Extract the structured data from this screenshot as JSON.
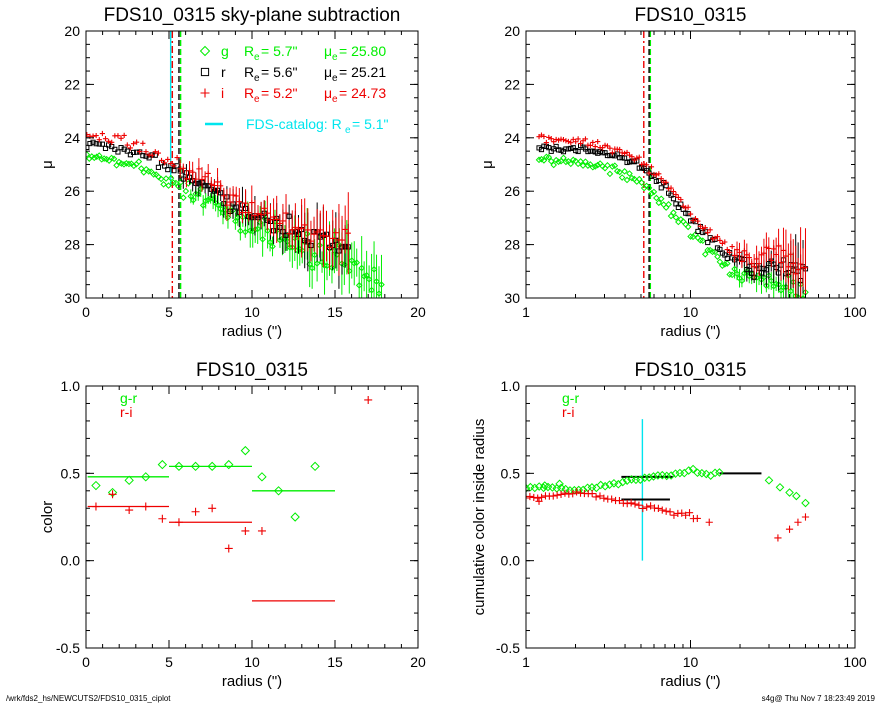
{
  "footer": {
    "left": "/wrk/fds2_hs/NEWCUTS2/FDS10_0315_ciplot",
    "right": "s4g@  Thu Nov  7 18:23:49 2019"
  },
  "colors": {
    "g": "#00ee00",
    "r": "#000000",
    "i": "#ee0000",
    "catalog": "#00e5ee"
  },
  "chart_data": [
    {
      "type": "scatter",
      "title": "FDS10_0315 sky-plane subtraction",
      "xlabel": "radius (\")",
      "ylabel": "μ",
      "xlim": [
        0,
        20
      ],
      "ylim": [
        30,
        20
      ],
      "x_scale": "linear",
      "x_ticks": [
        0,
        5,
        10,
        15,
        20
      ],
      "y_ticks": [
        20,
        22,
        24,
        26,
        28,
        30
      ],
      "legend": [
        {
          "marker": "diamond",
          "band": "g",
          "text": "R",
          "sub": "e",
          "value": "=   5.7\"",
          "mu": "μ",
          "mu_sub": "e",
          "mu_value": "= 25.80",
          "color": "#00ee00"
        },
        {
          "marker": "square",
          "band": "r",
          "text": "R",
          "sub": "e",
          "value": "=   5.6\"",
          "mu": "μ",
          "mu_sub": "e",
          "mu_value": "= 25.21",
          "color": "#000000"
        },
        {
          "marker": "plus",
          "band": "i",
          "text": "R",
          "sub": "e",
          "value": "=   5.2\"",
          "mu": "μ",
          "mu_sub": "e",
          "mu_value": "= 24.73",
          "color": "#ee0000"
        }
      ],
      "catalog_legend": {
        "text": "FDS-catalog: R",
        "sub": "e",
        "value": "=   5.1\"",
        "color": "#00e5ee"
      },
      "vlines": [
        {
          "x": 5.7,
          "color": "#00ee00",
          "style": "dashed"
        },
        {
          "x": 5.6,
          "color": "#000000",
          "style": "dashed"
        },
        {
          "x": 5.2,
          "color": "#ee0000",
          "style": "dashdot"
        },
        {
          "x": 5.1,
          "color": "#00e5ee",
          "style": "solid",
          "ymin": 25.8
        }
      ],
      "series": [
        {
          "name": "g",
          "marker": "diamond",
          "color": "#00ee00",
          "profile": [
            [
              0,
              24.6
            ],
            [
              2,
              24.9
            ],
            [
              4,
              25.3
            ],
            [
              6,
              25.9
            ],
            [
              8,
              26.6
            ],
            [
              10,
              27.3
            ],
            [
              12,
              27.8
            ],
            [
              14,
              28.4
            ],
            [
              16,
              28.9
            ],
            [
              17.8,
              29.4
            ]
          ],
          "n": 120,
          "scatter": 0.15,
          "xmax": 17.8
        },
        {
          "name": "r",
          "marker": "square",
          "color": "#000000",
          "profile": [
            [
              0,
              24.2
            ],
            [
              2,
              24.4
            ],
            [
              4,
              24.8
            ],
            [
              6,
              25.4
            ],
            [
              8,
              26.1
            ],
            [
              10,
              26.8
            ],
            [
              12,
              27.3
            ],
            [
              14,
              27.8
            ],
            [
              16,
              28.4
            ]
          ],
          "n": 85,
          "scatter": 0.1,
          "xmax": 15.8
        },
        {
          "name": "i",
          "marker": "plus",
          "color": "#ee0000",
          "profile": [
            [
              0,
              23.9
            ],
            [
              2,
              24.1
            ],
            [
              4,
              24.6
            ],
            [
              6,
              25.2
            ],
            [
              8,
              25.9
            ],
            [
              10,
              26.6
            ],
            [
              12,
              27.2
            ],
            [
              14,
              27.6
            ],
            [
              16,
              28.0
            ]
          ],
          "n": 85,
          "scatter": 0.12,
          "xmax": 15.8
        }
      ]
    },
    {
      "type": "scatter",
      "title": "FDS10_0315",
      "xlabel": "radius (\")",
      "ylabel": "μ",
      "xlim": [
        1,
        100
      ],
      "ylim": [
        30,
        20
      ],
      "x_scale": "log",
      "x_ticks": [
        1,
        10,
        100
      ],
      "y_ticks": [
        20,
        22,
        24,
        26,
        28,
        30
      ],
      "vlines": [
        {
          "x": 5.7,
          "color": "#00ee00",
          "style": "dashed"
        },
        {
          "x": 5.6,
          "color": "#000000",
          "style": "dashed"
        },
        {
          "x": 5.2,
          "color": "#ee0000",
          "style": "dashdot"
        }
      ],
      "series": [
        {
          "name": "g",
          "marker": "diamond",
          "color": "#00ee00",
          "profile": [
            [
              1.2,
              24.8
            ],
            [
              2,
              24.9
            ],
            [
              3,
              25.1
            ],
            [
              4,
              25.4
            ],
            [
              5,
              25.7
            ],
            [
              6,
              26.1
            ],
            [
              8,
              26.9
            ],
            [
              10,
              27.6
            ],
            [
              13,
              28.3
            ],
            [
              17,
              28.9
            ],
            [
              25,
              29.3
            ],
            [
              35,
              29.4
            ],
            [
              50,
              29.6
            ]
          ],
          "n": 110,
          "scatter": 0.12,
          "xmin": 1.2,
          "xmax": 50
        },
        {
          "name": "r",
          "marker": "square",
          "color": "#000000",
          "profile": [
            [
              1.2,
              24.4
            ],
            [
              2,
              24.4
            ],
            [
              3,
              24.6
            ],
            [
              4,
              24.8
            ],
            [
              5,
              25.1
            ],
            [
              6,
              25.5
            ],
            [
              8,
              26.3
            ],
            [
              10,
              27.0
            ],
            [
              13,
              27.8
            ],
            [
              17,
              28.5
            ],
            [
              25,
              28.9
            ],
            [
              35,
              28.8
            ],
            [
              50,
              29.3
            ]
          ],
          "n": 110,
          "scatter": 0.1,
          "xmin": 1.2,
          "xmax": 50
        },
        {
          "name": "i",
          "marker": "plus",
          "color": "#ee0000",
          "profile": [
            [
              1.2,
              24.0
            ],
            [
              2,
              24.1
            ],
            [
              3,
              24.3
            ],
            [
              4,
              24.6
            ],
            [
              5,
              24.9
            ],
            [
              6,
              25.3
            ],
            [
              8,
              26.1
            ],
            [
              10,
              26.8
            ],
            [
              13,
              27.6
            ],
            [
              17,
              28.3
            ],
            [
              25,
              28.5
            ],
            [
              35,
              28.3
            ],
            [
              50,
              29.0
            ]
          ],
          "n": 110,
          "scatter": 0.12,
          "xmin": 1.2,
          "xmax": 50
        }
      ]
    },
    {
      "type": "scatter",
      "title": "FDS10_0315",
      "xlabel": "radius (\")",
      "ylabel": "color",
      "xlim": [
        0,
        20
      ],
      "ylim": [
        -0.5,
        1.0
      ],
      "x_scale": "linear",
      "x_ticks": [
        0,
        5,
        10,
        15,
        20
      ],
      "y_ticks": [
        -0.5,
        0.0,
        0.5,
        1.0
      ],
      "y_tick_labels": [
        "-0.5",
        "0.0",
        "0.5",
        "1.0"
      ],
      "legend": [
        {
          "text": "g-r",
          "color": "#00ee00"
        },
        {
          "text": "r-i",
          "color": "#ee0000"
        }
      ],
      "series": [
        {
          "name": "g-r",
          "marker": "diamond",
          "color": "#00ee00",
          "points": [
            [
              0.6,
              0.43
            ],
            [
              1.6,
              0.39
            ],
            [
              2.6,
              0.46
            ],
            [
              3.6,
              0.48
            ],
            [
              4.6,
              0.55
            ],
            [
              5.6,
              0.54
            ],
            [
              6.6,
              0.54
            ],
            [
              7.6,
              0.54
            ],
            [
              8.6,
              0.55
            ],
            [
              9.6,
              0.63
            ],
            [
              10.6,
              0.48
            ],
            [
              11.6,
              0.4
            ],
            [
              12.6,
              0.25
            ],
            [
              13.8,
              0.54
            ]
          ]
        },
        {
          "name": "r-i",
          "marker": "plus",
          "color": "#ee0000",
          "points": [
            [
              0.6,
              0.31
            ],
            [
              1.6,
              0.38
            ],
            [
              2.6,
              0.29
            ],
            [
              3.6,
              0.31
            ],
            [
              4.6,
              0.24
            ],
            [
              5.6,
              0.22
            ],
            [
              6.6,
              0.28
            ],
            [
              7.6,
              0.3
            ],
            [
              8.6,
              0.07
            ],
            [
              9.6,
              0.17
            ],
            [
              10.6,
              0.17
            ],
            [
              17,
              0.92
            ]
          ]
        }
      ],
      "segments": [
        {
          "color": "#00ee00",
          "x1": 0.1,
          "x2": 5,
          "y": 0.48
        },
        {
          "color": "#00ee00",
          "x1": 5,
          "x2": 10,
          "y": 0.54
        },
        {
          "color": "#00ee00",
          "x1": 10,
          "x2": 15,
          "y": 0.4
        },
        {
          "color": "#ee0000",
          "x1": 0.1,
          "x2": 5,
          "y": 0.31
        },
        {
          "color": "#ee0000",
          "x1": 5,
          "x2": 10,
          "y": 0.22
        },
        {
          "color": "#ee0000",
          "x1": 10,
          "x2": 15,
          "y": -0.23
        }
      ]
    },
    {
      "type": "scatter",
      "title": "FDS10_0315",
      "xlabel": "radius (\")",
      "ylabel": "cumulative color inside radius",
      "xlim": [
        1,
        100
      ],
      "ylim": [
        -0.5,
        1.0
      ],
      "x_scale": "log",
      "x_ticks": [
        1,
        10,
        100
      ],
      "y_ticks": [
        -0.5,
        0.0,
        0.5,
        1.0
      ],
      "y_tick_labels": [
        "-0.5",
        "0.0",
        "0.5",
        "1.0"
      ],
      "legend": [
        {
          "text": "g-r",
          "color": "#00ee00"
        },
        {
          "text": "r-i",
          "color": "#ee0000"
        }
      ],
      "vlines": [
        {
          "x": 5.1,
          "color": "#00e5ee",
          "style": "solid",
          "ymin": 0.0,
          "ymax": 0.81
        }
      ],
      "series": [
        {
          "name": "g-r",
          "marker": "diamond",
          "color": "#00ee00",
          "profile": [
            [
              1.0,
              0.42
            ],
            [
              1.5,
              0.42
            ],
            [
              2,
              0.4
            ],
            [
              3,
              0.43
            ],
            [
              4,
              0.45
            ],
            [
              5,
              0.47
            ],
            [
              6,
              0.48
            ],
            [
              8,
              0.5
            ],
            [
              10,
              0.51
            ],
            [
              12,
              0.51
            ],
            [
              15,
              0.5
            ]
          ],
          "n": 45,
          "scatter": 0.005,
          "xmin": 1.0,
          "xmax": 15,
          "extra": [
            [
              1.3,
              0.43
            ],
            [
              1.6,
              0.44
            ],
            [
              30,
              0.46
            ],
            [
              35,
              0.42
            ],
            [
              40,
              0.39
            ],
            [
              44,
              0.37
            ],
            [
              50,
              0.33
            ]
          ]
        },
        {
          "name": "r-i",
          "marker": "plus",
          "color": "#ee0000",
          "profile": [
            [
              1.0,
              0.36
            ],
            [
              1.5,
              0.37
            ],
            [
              2,
              0.39
            ],
            [
              2.5,
              0.38
            ],
            [
              3,
              0.36
            ],
            [
              4,
              0.33
            ],
            [
              5,
              0.31
            ],
            [
              6,
              0.3
            ],
            [
              8,
              0.27
            ],
            [
              10,
              0.26
            ],
            [
              11,
              0.24
            ]
          ],
          "n": 45,
          "scatter": 0.005,
          "xmin": 1.0,
          "xmax": 11,
          "extra": [
            [
              1.2,
              0.34
            ],
            [
              13,
              0.22
            ],
            [
              34,
              0.13
            ],
            [
              40,
              0.18
            ],
            [
              45,
              0.22
            ],
            [
              50,
              0.25
            ]
          ]
        }
      ],
      "segments": [
        {
          "color": "#000000",
          "x1": 3.8,
          "x2": 7.5,
          "y": 0.35
        },
        {
          "color": "#000000",
          "x1": 3.8,
          "x2": 7.8,
          "y": 0.48
        },
        {
          "color": "#000000",
          "x1": 15,
          "x2": 27,
          "y": 0.5
        }
      ]
    }
  ]
}
